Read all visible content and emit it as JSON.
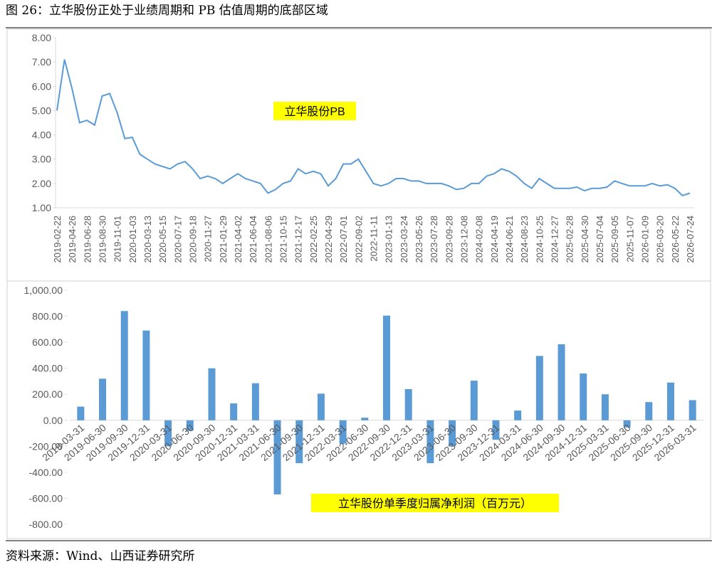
{
  "figure_title": "图 26：立华股份正处于业绩周期和 PB 估值周期的底部区域",
  "source": "资料来源：Wind、山西证券研究所",
  "chart_data": [
    {
      "type": "line",
      "annotation": "立华股份PB",
      "color": "#5b9bd5",
      "categories": [
        "2019-02-22",
        null,
        "2019-04-26",
        null,
        "2019-06-28",
        null,
        "2019-08-30",
        null,
        "2019-11-01",
        null,
        "2020-01-03",
        null,
        "2020-03-13",
        null,
        "2020-05-15",
        null,
        "2020-07-17",
        null,
        "2020-09-18",
        null,
        "2020-11-27",
        null,
        "2021-01-29",
        null,
        "2021-04-02",
        null,
        "2021-06-04",
        null,
        "2021-08-06",
        null,
        "2021-10-15",
        null,
        "2021-12-17",
        null,
        "2022-02-25",
        null,
        "2022-04-29",
        null,
        "2022-07-01",
        null,
        "2022-09-02",
        null,
        "2022-11-11",
        null,
        "2023-01-13",
        null,
        "2023-03-24",
        null,
        "2023-05-26",
        null,
        "2023-07-28",
        null,
        "2023-09-28",
        null,
        "2023-12-08",
        null,
        "2024-02-08",
        null,
        "2024-04-19",
        null,
        "2024-06-21",
        null,
        "2024-08-23",
        null,
        "2024-10-25",
        null,
        "2024-12-27",
        null,
        "2025-02-28",
        null,
        "2025-04-30",
        null,
        "2025-07-04",
        null,
        "2025-09-05",
        null,
        "2025-11-07",
        null,
        "2026-01-09",
        null,
        "2026-03-20",
        null,
        "2026-05-22",
        null,
        "2026-07-24"
      ],
      "values": [
        5.0,
        7.1,
        5.9,
        4.5,
        4.6,
        4.4,
        5.6,
        5.7,
        4.9,
        3.85,
        3.9,
        3.2,
        3.0,
        2.8,
        2.7,
        2.6,
        2.8,
        2.9,
        2.6,
        2.2,
        2.3,
        2.2,
        2.0,
        2.2,
        2.4,
        2.2,
        2.1,
        2.0,
        1.6,
        1.75,
        2.0,
        2.1,
        2.6,
        2.4,
        2.5,
        2.4,
        1.9,
        2.2,
        2.8,
        2.8,
        3.0,
        2.5,
        2.0,
        1.9,
        2.0,
        2.2,
        2.2,
        2.1,
        2.1,
        2.0,
        2.0,
        2.0,
        1.9,
        1.75,
        1.8,
        2.0,
        2.0,
        2.3,
        2.4,
        2.6,
        2.5,
        2.3,
        2.0,
        1.8,
        2.2,
        2.0,
        1.8,
        1.8,
        1.8,
        1.85,
        1.7,
        1.8,
        1.8,
        1.85,
        2.1,
        2.0,
        1.9,
        1.9,
        1.9,
        2.0,
        1.9,
        1.95,
        1.8,
        1.5,
        1.6
      ],
      "ylim": [
        1,
        8
      ],
      "yticks": [
        {
          "value": 1,
          "label": "1.00"
        },
        {
          "value": 2,
          "label": "2.00"
        },
        {
          "value": 3,
          "label": "3.00"
        },
        {
          "value": 4,
          "label": "4.00"
        },
        {
          "value": 5,
          "label": "5.00"
        },
        {
          "value": 6,
          "label": "6.00"
        },
        {
          "value": 7,
          "label": "7.00"
        },
        {
          "value": 8,
          "label": "8.00"
        }
      ]
    },
    {
      "type": "bar",
      "annotation": "立华股份单季度归属净利润（百万元）",
      "color": "#5b9bd5",
      "categories": [
        "2019-03-31",
        "2019-06-30",
        "2019-09-30",
        "2019-12-31",
        "2020-03-31",
        "2020-06-30",
        "2020-09-30",
        "2020-12-31",
        "2021-03-31",
        "2021-06-30",
        "2021-09-30",
        "2021-12-31",
        "2022-03-31",
        "2022-06-30",
        "2022-09-30",
        "2022-12-31",
        "2023-03-31",
        "2023-06-30",
        "2023-09-30",
        "2023-12-31",
        "2024-03-31",
        "2024-06-30",
        "2024-09-30",
        "2024-12-31",
        "2025-03-31",
        "2025-06-30",
        "2025-09-30",
        "2025-12-31",
        "2026-03-31"
      ],
      "values": [
        105,
        320,
        840,
        690,
        -200,
        -80,
        400,
        130,
        285,
        -570,
        -330,
        205,
        -180,
        20,
        805,
        240,
        -330,
        -200,
        305,
        -150,
        75,
        495,
        585,
        360,
        200,
        -55,
        140,
        290,
        155
      ],
      "ylim": [
        -800,
        1000
      ],
      "yticks": [
        {
          "value": -800,
          "label": "-800.00"
        },
        {
          "value": -600,
          "label": "-600.00"
        },
        {
          "value": -400,
          "label": "-400.00"
        },
        {
          "value": -200,
          "label": "-200.00"
        },
        {
          "value": 0,
          "label": "0.00"
        },
        {
          "value": 200,
          "label": "200.00"
        },
        {
          "value": 400,
          "label": "400.00"
        },
        {
          "value": 600,
          "label": "600.00"
        },
        {
          "value": 800,
          "label": "800.00"
        },
        {
          "value": 1000,
          "label": "1,000.00"
        }
      ]
    }
  ]
}
